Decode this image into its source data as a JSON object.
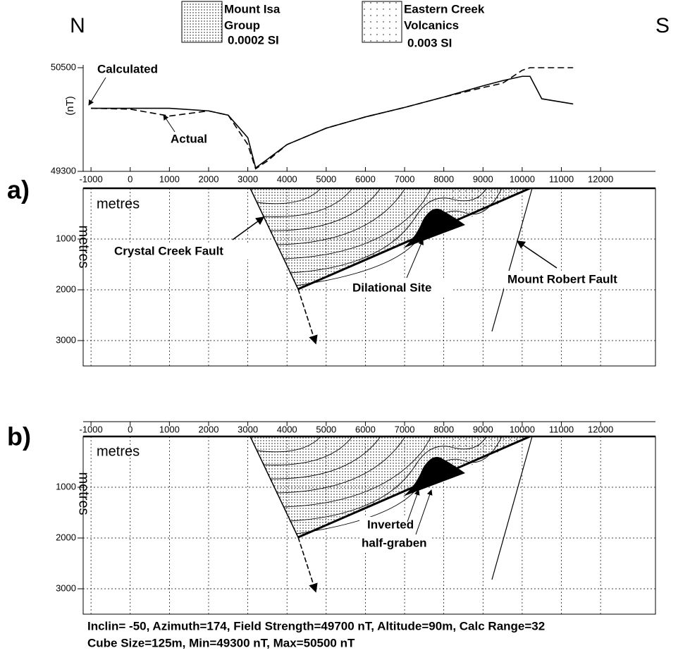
{
  "header": {
    "north": "N",
    "south": "S"
  },
  "legend": [
    {
      "lines": [
        "Mount Isa",
        "Group"
      ],
      "susceptibility": "0.0002 SI"
    },
    {
      "lines": [
        "Eastern Creek",
        "Volcanics"
      ],
      "susceptibility": "0.003 SI"
    }
  ],
  "chart_data": {
    "type": "line",
    "y_label": "(nT)",
    "x": [
      -1000,
      0,
      1000,
      2000,
      2500,
      3000,
      3200,
      3500,
      4000,
      5000,
      6000,
      7000,
      8000,
      9000,
      9500,
      10000,
      10200,
      10500,
      11300
    ],
    "series": [
      {
        "name": "Calculated",
        "color": "#000000",
        "style": "solid",
        "values": [
          50030,
          50030,
          50030,
          50000,
          49950,
          49690,
          49340,
          49440,
          49610,
          49800,
          49930,
          50040,
          50160,
          50290,
          50350,
          50400,
          50400,
          50140,
          50080
        ]
      },
      {
        "name": "Actual",
        "color": "#000000",
        "style": "dashed",
        "values": [
          50030,
          50020,
          49940,
          50000,
          49950,
          49610,
          49330,
          49420,
          49610,
          49800,
          49930,
          50040,
          50160,
          50270,
          50320,
          50470,
          50500,
          50500,
          50500
        ]
      }
    ],
    "xlim": [
      -1200,
      13400
    ],
    "ylim": [
      49300,
      50500
    ],
    "xticks": [
      -1000,
      0,
      1000,
      2000,
      3000,
      4000,
      5000,
      6000,
      7000,
      8000,
      9000,
      10000,
      11000,
      12000
    ],
    "yticks": [
      49300,
      50500
    ]
  },
  "section_a": {
    "panel": "a)",
    "x_unit": "metres",
    "y_unit": "metres",
    "ylim": [
      0,
      3500
    ],
    "yticks": [
      1000,
      2000,
      3000
    ],
    "labels": [
      "Crystal Creek Fault",
      "Dilational Site",
      "Mount Robert Fault"
    ]
  },
  "section_b": {
    "panel": "b)",
    "x_unit": "metres",
    "y_unit": "metres",
    "ylim": [
      0,
      3500
    ],
    "yticks": [
      1000,
      2000,
      3000
    ],
    "xticks": [
      -1000,
      0,
      1000,
      2000,
      3000,
      4000,
      5000,
      6000,
      7000,
      8000,
      9000,
      10000,
      11000,
      12000
    ],
    "labels": [
      "Inverted",
      "half-graben"
    ]
  },
  "footer": [
    "Inclin= -50,  Azimuth=174,  Field Strength=49700 nT,  Altitude=90m, Calc Range=32",
    "Cube Size=125m, Min=49300 nT,  Max=50500 nT"
  ]
}
